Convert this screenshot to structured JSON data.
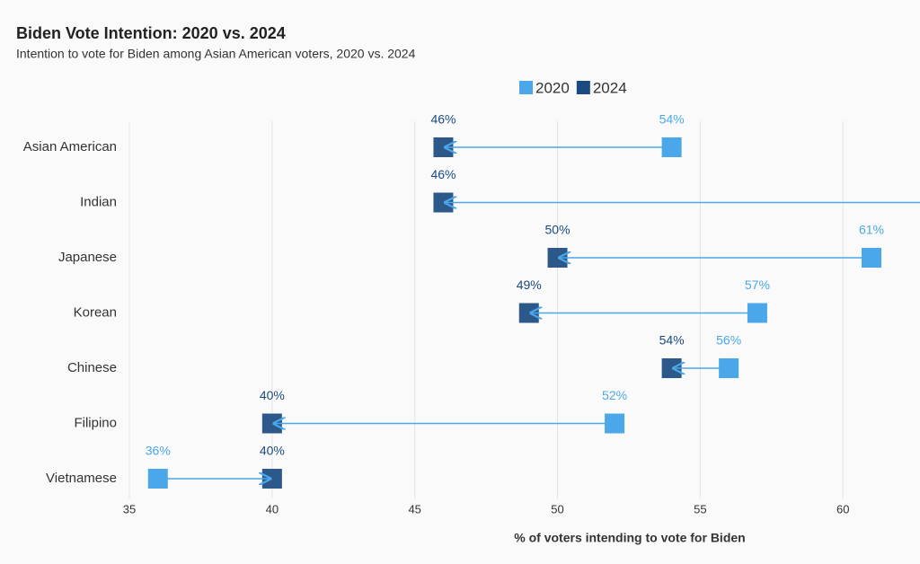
{
  "chart_data": {
    "type": "dumbbell",
    "title": "Biden Vote Intention: 2020 vs. 2024",
    "subtitle": "Intention to vote for Biden among Asian American voters, 2020 vs. 2024",
    "x_label": "% of voters intending to vote for Biden",
    "categories": [
      "Asian American",
      "Indian",
      "Japanese",
      "Korean",
      "Chinese",
      "Filipino",
      "Vietnamese"
    ],
    "series": [
      {
        "name": "2020",
        "color": "#4aa8ea",
        "values": [
          54,
          null,
          61,
          57,
          56,
          52,
          36
        ],
        "value_labels": [
          "54%",
          null,
          "61%",
          "57%",
          "56%",
          "52%",
          "36%"
        ]
      },
      {
        "name": "2024",
        "color": "#1a4a80",
        "values": [
          46,
          46,
          50,
          49,
          54,
          40,
          40
        ],
        "value_labels": [
          "46%",
          "46%",
          "50%",
          "49%",
          "54%",
          "40%",
          "40%"
        ]
      }
    ],
    "xlim": [
      35,
      62.7
    ],
    "xticks": [
      35,
      40,
      45,
      50,
      55,
      60
    ],
    "grid": true,
    "legend": "top"
  }
}
